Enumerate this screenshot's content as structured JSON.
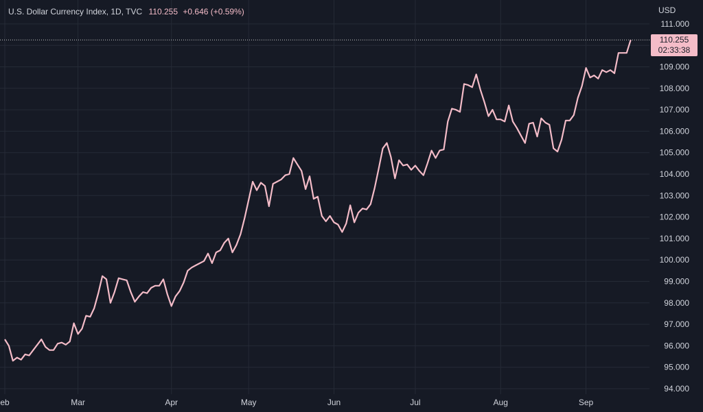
{
  "header": {
    "title": "U.S. Dollar Currency Index, 1D, TVC",
    "price": "110.255",
    "change": "+0.646 (+0.59%)"
  },
  "axis_unit": "USD",
  "badge": {
    "price": "110.255",
    "countdown": "02:33:38"
  },
  "colors": {
    "background": "#161a25",
    "line": "#f4bcc8",
    "grid": "#252a36",
    "text": "#d1d4dc"
  },
  "chart_data": {
    "type": "line",
    "title": "U.S. Dollar Currency Index, 1D, TVC",
    "xlabel": "",
    "ylabel": "",
    "ylim": [
      93.6,
      111.6
    ],
    "yticks": [
      "94.000",
      "95.000",
      "96.000",
      "97.000",
      "98.000",
      "99.000",
      "100.000",
      "101.000",
      "102.000",
      "103.000",
      "104.000",
      "105.000",
      "106.000",
      "107.000",
      "108.000",
      "109.000",
      "110.000",
      "111.000"
    ],
    "xticks": [
      {
        "label": "eb",
        "index": 0
      },
      {
        "label": "Mar",
        "index": 18
      },
      {
        "label": "Apr",
        "index": 41
      },
      {
        "label": "May",
        "index": 60
      },
      {
        "label": "Jun",
        "index": 81
      },
      {
        "label": "Jul",
        "index": 101
      },
      {
        "label": "Aug",
        "index": 122
      },
      {
        "label": "Sep",
        "index": 143
      }
    ],
    "grid": true,
    "series": [
      {
        "values": [
          96.3,
          96.0,
          95.3,
          95.45,
          95.35,
          95.6,
          95.55,
          95.8,
          96.05,
          96.3,
          95.95,
          95.8,
          95.8,
          96.1,
          96.15,
          96.05,
          96.2,
          97.05,
          96.55,
          96.8,
          97.4,
          97.35,
          97.75,
          98.45,
          99.25,
          99.1,
          98.0,
          98.5,
          99.15,
          99.1,
          99.05,
          98.5,
          98.05,
          98.3,
          98.5,
          98.45,
          98.7,
          98.8,
          98.8,
          99.1,
          98.4,
          97.85,
          98.3,
          98.55,
          98.95,
          99.5,
          99.65,
          99.75,
          99.85,
          99.95,
          100.3,
          99.85,
          100.35,
          100.45,
          100.8,
          101.0,
          100.35,
          100.7,
          101.2,
          101.95,
          102.8,
          103.65,
          103.25,
          103.6,
          103.45,
          102.5,
          103.55,
          103.65,
          103.75,
          103.95,
          104.0,
          104.75,
          104.45,
          104.15,
          103.3,
          103.9,
          102.85,
          102.95,
          102.05,
          101.8,
          102.05,
          101.75,
          101.65,
          101.3,
          101.7,
          102.55,
          101.75,
          102.2,
          102.4,
          102.35,
          102.6,
          103.35,
          104.25,
          105.2,
          105.45,
          104.8,
          103.8,
          104.65,
          104.4,
          104.45,
          104.2,
          104.4,
          104.15,
          103.95,
          104.5,
          105.1,
          104.75,
          105.1,
          105.15,
          106.45,
          107.05,
          107.0,
          106.9,
          108.2,
          108.15,
          108.05,
          108.65,
          107.95,
          107.35,
          106.7,
          107.0,
          106.55,
          106.55,
          106.45,
          107.2,
          106.45,
          106.15,
          105.8,
          105.45,
          106.35,
          106.4,
          105.75,
          106.6,
          106.4,
          106.3,
          105.2,
          105.05,
          105.6,
          106.5,
          106.5,
          106.75,
          107.55,
          108.1,
          108.95,
          108.5,
          108.6,
          108.45,
          108.85,
          108.75,
          108.85,
          108.7,
          109.65,
          109.65,
          109.65,
          110.255
        ]
      }
    ]
  }
}
